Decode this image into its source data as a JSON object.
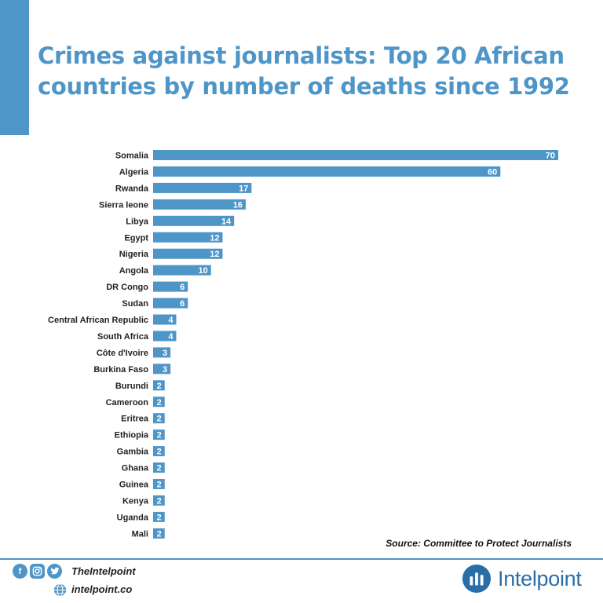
{
  "chart_data": {
    "type": "bar",
    "orientation": "horizontal",
    "title": "Crimes against journalists: Top 20 African countries by number of deaths since 1992",
    "categories": [
      "Somalia",
      "Algeria",
      "Rwanda",
      "Sierra leone",
      "Libya",
      "Egypt",
      "Nigeria",
      "Angola",
      "DR Congo",
      "Sudan",
      "Central African Republic",
      "South Africa",
      "Côte d'Ivoire",
      "Burkina Faso",
      "Burundi",
      "Cameroon",
      "Eritrea",
      "Ethiopia",
      "Gambia",
      "Ghana",
      "Guinea",
      "Kenya",
      "Uganda",
      "Mali"
    ],
    "values": [
      70,
      60,
      17,
      16,
      14,
      12,
      12,
      10,
      6,
      6,
      4,
      4,
      3,
      3,
      2,
      2,
      2,
      2,
      2,
      2,
      2,
      2,
      2,
      2
    ],
    "xlim": [
      0,
      70
    ],
    "grid": false,
    "bar_color": "#4e95c8",
    "label_color": "#ffffff",
    "category_color": "#222222"
  },
  "source": "Source: Committee to Protect Journalists",
  "footer": {
    "social_icons": [
      "facebook-icon",
      "instagram-icon",
      "twitter-icon"
    ],
    "handle": "TheIntelpoint",
    "website": "intelpoint.co",
    "brand": "Intelpoint"
  },
  "colors": {
    "accent": "#4e95c8",
    "brand": "#2a6ea8"
  }
}
